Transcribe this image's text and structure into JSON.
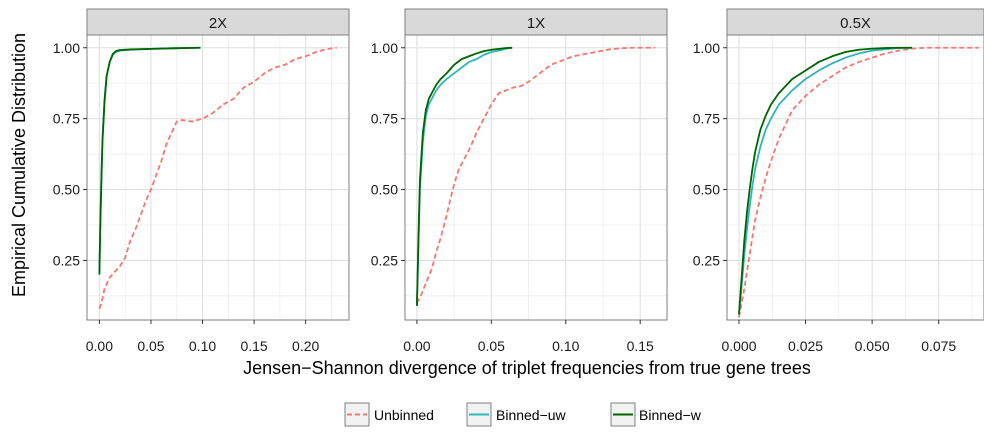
{
  "chart_data": {
    "type": "line",
    "ylabel": "Empirical Cumulative Distribution",
    "xlabel": "Jensen−Shannon divergence of triplet frequencies from true gene trees",
    "y_ticks": [
      "0.25",
      "0.50",
      "0.75",
      "1.00"
    ],
    "y_tick_values": [
      0.25,
      0.5,
      0.75,
      1.0
    ],
    "legend": [
      "Unbinned",
      "Binned−uw",
      "Binned−w"
    ],
    "legend_position": "bottom",
    "grid": true,
    "colors": {
      "panel_bg": "#ffffff",
      "grid": "#ebebeb",
      "strip_bg": "#d9d9d9",
      "border": "#7f7f7f",
      "Unbinned": "#f8766d",
      "Binned−uw": "#2fb5b5",
      "Binned−w": "#006400"
    },
    "panels": [
      {
        "strip": "2X",
        "xlim": [
          -0.012,
          0.242
        ],
        "ylim": [
          0.04,
          1.045
        ],
        "x_ticks": [
          "0.00",
          "0.05",
          "0.10",
          "0.15",
          "0.20"
        ],
        "x_tick_values": [
          0,
          0.05,
          0.1,
          0.15,
          0.2
        ],
        "series": [
          {
            "name": "Unbinned",
            "style": "dashed",
            "x": [
              0,
              0.002,
              0.005,
              0.01,
              0.015,
              0.02,
              0.025,
              0.03,
              0.035,
              0.04,
              0.045,
              0.05,
              0.055,
              0.06,
              0.065,
              0.07,
              0.075,
              0.08,
              0.09,
              0.1,
              0.11,
              0.12,
              0.13,
              0.14,
              0.15,
              0.16,
              0.17,
              0.18,
              0.19,
              0.2,
              0.21,
              0.22,
              0.23
            ],
            "y": [
              0.08,
              0.1,
              0.15,
              0.19,
              0.21,
              0.23,
              0.26,
              0.32,
              0.36,
              0.41,
              0.46,
              0.5,
              0.55,
              0.6,
              0.66,
              0.7,
              0.74,
              0.745,
              0.74,
              0.75,
              0.77,
              0.8,
              0.82,
              0.86,
              0.88,
              0.91,
              0.93,
              0.94,
              0.96,
              0.97,
              0.985,
              0.995,
              1.0
            ]
          },
          {
            "name": "Binned−uw",
            "style": "solid",
            "x": [
              0,
              0.001,
              0.002,
              0.003,
              0.005,
              0.007,
              0.01,
              0.013,
              0.016,
              0.02,
              0.03,
              0.05,
              0.07,
              0.098
            ],
            "y": [
              0.21,
              0.4,
              0.55,
              0.68,
              0.82,
              0.9,
              0.95,
              0.975,
              0.985,
              0.99,
              0.993,
              0.996,
              0.998,
              1.0
            ]
          },
          {
            "name": "Binned−w",
            "style": "solid",
            "x": [
              0,
              0.001,
              0.002,
              0.003,
              0.005,
              0.007,
              0.01,
              0.013,
              0.016,
              0.02,
              0.03,
              0.05,
              0.07,
              0.098
            ],
            "y": [
              0.2,
              0.39,
              0.54,
              0.67,
              0.81,
              0.9,
              0.95,
              0.978,
              0.988,
              0.992,
              0.994,
              0.996,
              0.998,
              1.0
            ]
          }
        ]
      },
      {
        "strip": "1X",
        "xlim": [
          -0.008,
          0.168
        ],
        "ylim": [
          0.04,
          1.045
        ],
        "x_ticks": [
          "0.00",
          "0.05",
          "0.10",
          "0.15"
        ],
        "x_tick_values": [
          0,
          0.05,
          0.1,
          0.15
        ],
        "series": [
          {
            "name": "Unbinned",
            "style": "dashed",
            "x": [
              0,
              0.003,
              0.006,
              0.01,
              0.013,
              0.016,
              0.02,
              0.024,
              0.028,
              0.032,
              0.036,
              0.04,
              0.045,
              0.05,
              0.055,
              0.06,
              0.065,
              0.07,
              0.075,
              0.08,
              0.085,
              0.09,
              0.095,
              0.1,
              0.105,
              0.11,
              0.115,
              0.12,
              0.125,
              0.13,
              0.135,
              0.14,
              0.145,
              0.15,
              0.155,
              0.16
            ],
            "y": [
              0.1,
              0.13,
              0.17,
              0.22,
              0.28,
              0.33,
              0.41,
              0.5,
              0.57,
              0.61,
              0.65,
              0.7,
              0.75,
              0.8,
              0.84,
              0.85,
              0.86,
              0.865,
              0.88,
              0.9,
              0.92,
              0.94,
              0.95,
              0.96,
              0.97,
              0.975,
              0.98,
              0.985,
              0.99,
              0.995,
              0.997,
              0.999,
              1.0,
              1.0,
              1.0,
              1.0
            ]
          },
          {
            "name": "Binned−uw",
            "style": "solid",
            "x": [
              0,
              0.001,
              0.002,
              0.004,
              0.006,
              0.008,
              0.01,
              0.013,
              0.016,
              0.02,
              0.025,
              0.03,
              0.035,
              0.04,
              0.045,
              0.05,
              0.055,
              0.06,
              0.064
            ],
            "y": [
              0.09,
              0.3,
              0.5,
              0.67,
              0.76,
              0.8,
              0.82,
              0.85,
              0.87,
              0.89,
              0.91,
              0.93,
              0.95,
              0.96,
              0.975,
              0.985,
              0.99,
              0.997,
              1.0
            ]
          },
          {
            "name": "Binned−w",
            "style": "solid",
            "x": [
              0,
              0.001,
              0.002,
              0.004,
              0.006,
              0.008,
              0.01,
              0.013,
              0.016,
              0.02,
              0.025,
              0.03,
              0.035,
              0.04,
              0.045,
              0.05,
              0.055,
              0.06,
              0.064
            ],
            "y": [
              0.09,
              0.32,
              0.53,
              0.7,
              0.78,
              0.82,
              0.84,
              0.87,
              0.89,
              0.91,
              0.94,
              0.96,
              0.97,
              0.98,
              0.988,
              0.993,
              0.996,
              0.999,
              1.0
            ]
          }
        ]
      },
      {
        "strip": "0.5X",
        "xlim": [
          -0.0045,
          0.092
        ],
        "ylim": [
          0.04,
          1.045
        ],
        "x_ticks": [
          "0.000",
          "0.025",
          "0.050",
          "0.075"
        ],
        "x_tick_values": [
          0,
          0.025,
          0.05,
          0.075
        ],
        "series": [
          {
            "name": "Unbinned",
            "style": "dashed",
            "x": [
              0,
              0.001,
              0.002,
              0.003,
              0.004,
              0.005,
              0.006,
              0.008,
              0.01,
              0.012,
              0.015,
              0.018,
              0.02,
              0.025,
              0.03,
              0.035,
              0.04,
              0.045,
              0.05,
              0.055,
              0.06,
              0.065,
              0.07,
              0.075,
              0.08,
              0.085,
              0.09
            ],
            "y": [
              0.05,
              0.1,
              0.15,
              0.21,
              0.27,
              0.33,
              0.39,
              0.47,
              0.54,
              0.6,
              0.68,
              0.74,
              0.78,
              0.83,
              0.87,
              0.9,
              0.93,
              0.95,
              0.965,
              0.98,
              0.99,
              0.997,
              1.0,
              1.0,
              1.0,
              1.0,
              1.0
            ]
          },
          {
            "name": "Binned−uw",
            "style": "solid",
            "x": [
              0,
              0.001,
              0.002,
              0.003,
              0.004,
              0.005,
              0.006,
              0.008,
              0.01,
              0.012,
              0.015,
              0.018,
              0.02,
              0.025,
              0.03,
              0.035,
              0.04,
              0.045,
              0.05,
              0.055,
              0.06,
              0.065
            ],
            "y": [
              0.06,
              0.16,
              0.27,
              0.36,
              0.44,
              0.51,
              0.57,
              0.65,
              0.71,
              0.75,
              0.8,
              0.83,
              0.85,
              0.89,
              0.92,
              0.945,
              0.965,
              0.98,
              0.99,
              0.995,
              0.999,
              1.0
            ]
          },
          {
            "name": "Binned−w",
            "style": "solid",
            "x": [
              0,
              0.001,
              0.002,
              0.003,
              0.004,
              0.005,
              0.006,
              0.008,
              0.01,
              0.012,
              0.015,
              0.018,
              0.02,
              0.025,
              0.03,
              0.035,
              0.04,
              0.045,
              0.05,
              0.055,
              0.06,
              0.065
            ],
            "y": [
              0.06,
              0.19,
              0.32,
              0.42,
              0.5,
              0.57,
              0.63,
              0.71,
              0.76,
              0.8,
              0.84,
              0.87,
              0.89,
              0.92,
              0.95,
              0.97,
              0.985,
              0.993,
              0.997,
              0.999,
              1.0,
              1.0
            ]
          }
        ]
      }
    ]
  }
}
